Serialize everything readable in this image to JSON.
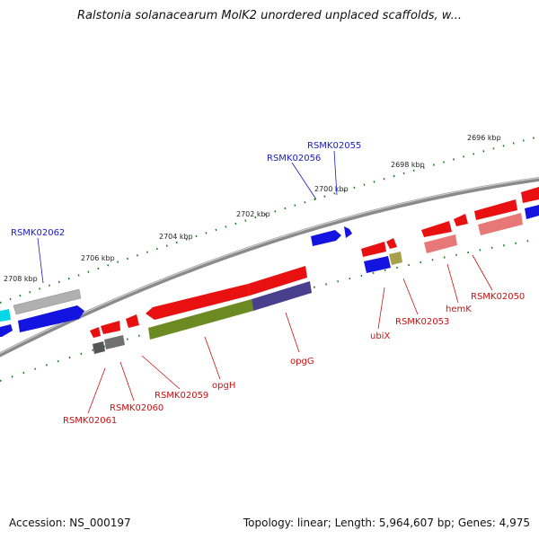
{
  "title": "Ralstonia solanacearum MolK2 unordered unplaced scaffolds, w...",
  "footer": {
    "accession": "Accession: NS_000197",
    "stats": "Topology: linear; Length: 5,964,607 bp; Genes: 4,975"
  },
  "ticks": [
    "2696 kbp",
    "2698 kbp",
    "2700 kbp",
    "2702 kbp",
    "2704 kbp",
    "2706 kbp",
    "2708 kbp"
  ],
  "forward_labels": [
    "RSMK02055",
    "RSMK02056",
    "RSMK02062"
  ],
  "reverse_labels": [
    "RSMK02050",
    "hemK",
    "RSMK02053",
    "ubiX",
    "opgG",
    "opgH",
    "RSMK02059",
    "RSMK02060",
    "RSMK02061"
  ],
  "colors": {
    "forward_gene": "#1414e0",
    "reverse_gene": "#e81010",
    "backbone": "#808080",
    "tick_dots": "#1a7a1a",
    "opgH": "#6b8a22",
    "opgG": "#4a3f8c",
    "pseudo_gray": "#a8a8a8",
    "pink": "#e87878",
    "cyan": "#00d8e8",
    "olive_small": "#a8a04a"
  }
}
